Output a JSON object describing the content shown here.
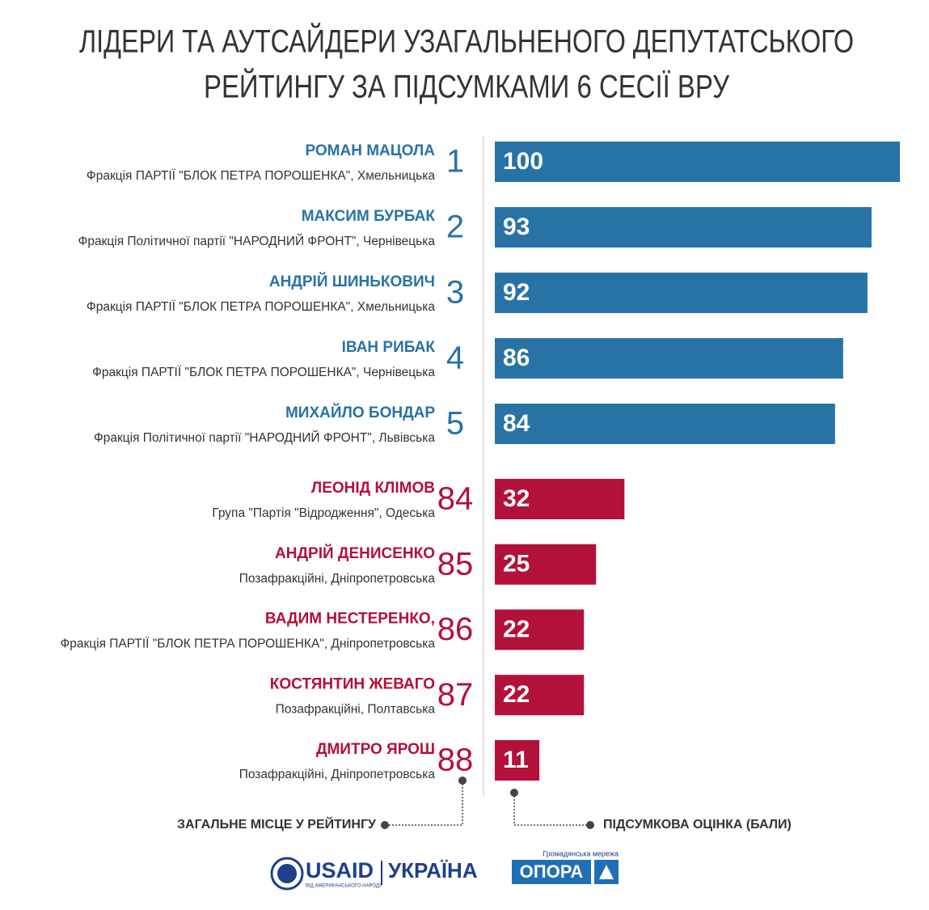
{
  "chart_data": {
    "type": "bar",
    "title": [
      "ЛІДЕРИ ТА АУТСАЙДЕРИ УЗАГАЛЬНЕНОГО ДЕПУТАТСЬКОГО",
      "РЕЙТИНГУ ЗА ПІДСУМКАМИ 6 СЕСІЇ ВРУ"
    ],
    "categories": [
      "РОМАН МАЦОЛА",
      "МАКСИМ БУРБАК",
      "АНДРІЙ ШИНЬКОВИЧ",
      "ІВАН РИБАК",
      "МИХАЙЛО БОНДАР",
      "ЛЕОНІД КЛІМОВ",
      "АНДРІЙ ДЕНИСЕНКО",
      "ВАДИМ НЕСТЕРЕНКО,",
      "КОСТЯНТИН ЖЕВАГО",
      "ДМИТРО ЯРОШ"
    ],
    "factions": [
      "Фракція ПАРТІЇ \"БЛОК ПЕТРА ПОРОШЕНКА\", Хмельницька",
      "Фракція Політичної партії \"НАРОДНИЙ ФРОНТ\", Чернівецька",
      "Фракція ПАРТІЇ \"БЛОК ПЕТРА ПОРОШЕНКА\", Хмельницька",
      "Фракція ПАРТІЇ \"БЛОК ПЕТРА ПОРОШЕНКА\", Чернівецька",
      "Фракція Політичної партії \"НАРОДНИЙ ФРОНТ\", Львівська",
      "Група \"Партія \"Відродження\", Одеська",
      "Позафракційні, Дніпропетровська",
      "Фракція ПАРТІЇ \"БЛОК ПЕТРА ПОРОШЕНКА\", Дніпропетровська",
      "Позафракційні, Полтавська",
      "Позафракційні, Дніпропетровська"
    ],
    "ranks": [
      1,
      2,
      3,
      4,
      5,
      84,
      85,
      86,
      87,
      88
    ],
    "values": [
      100,
      93,
      92,
      86,
      84,
      32,
      25,
      22,
      22,
      11
    ],
    "colors": [
      "#2873a6",
      "#2873a6",
      "#2873a6",
      "#2873a6",
      "#2873a6",
      "#b3103a",
      "#b3103a",
      "#b3103a",
      "#b3103a",
      "#b3103a"
    ],
    "xlim": [
      0,
      100
    ],
    "rank_note": "ЗАГАЛЬНЕ МІСЦЕ У РЕЙТИНГУ",
    "value_note": "ПІДСУМКОВА ОЦІНКА (БАЛИ)"
  },
  "footer": {
    "usaid": "USAID",
    "country": "УКРАЇНА",
    "usaid_tagline": "ВІД АМЕРИКАНСЬКОГО НАРОДУ",
    "opora_tagline": "Громадянська мережа",
    "opora": "ОПОРА"
  }
}
